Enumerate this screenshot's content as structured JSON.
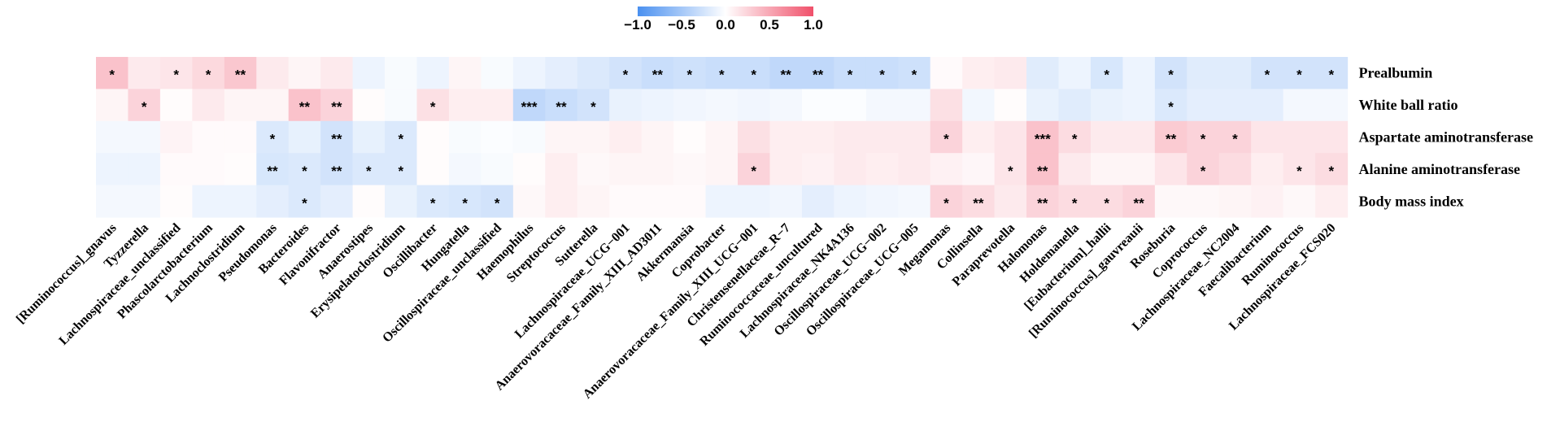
{
  "chart_data": {
    "type": "heatmap",
    "title": "",
    "color_scale": {
      "min": -1.0,
      "max": 1.0,
      "low_color": "#4a90f0",
      "mid_color": "#ffffff",
      "high_color": "#f0506a",
      "ticks": [
        "−1.0",
        "−0.5",
        "0.0",
        "0.5",
        "1.0"
      ],
      "tick_values": [
        -1.0,
        -0.5,
        0.0,
        0.5,
        1.0
      ]
    },
    "rows": [
      "Prealbumin",
      "White ball ratio",
      "Aspartate aminotransferase",
      "Alanine aminotransferase",
      "Body mass index"
    ],
    "columns": [
      "[Ruminococcus]_gnavus",
      "Tyzzerella",
      "Lachnospiraceae_unclassified",
      "Phascolarctobacterium",
      "Lachnoclostridium",
      "Pseudomonas",
      "Bacteroides",
      "Flavonifractor",
      "Anaerostipes",
      "Erysipelatoclostridium",
      "Oscillibacter",
      "Hungatella",
      "Oscillospiraceae_unclassified",
      "Haemophilus",
      "Streptococcus",
      "Sutterella",
      "Lachnospiraceae_UCG−001",
      "Anaerovoracaceae_Family_XIII_AD3011",
      "Akkermansia",
      "Coprobacter",
      "Anaerovoracaceae_Family_XIII_UCG−001",
      "Christensenellaceae_R−7",
      "Ruminococcaceae_uncultured",
      "Lachnospiraceae_NK4A136",
      "Oscillospiraceae_UCG−002",
      "Oscillospiraceae_UCG−005",
      "Megamonas",
      "Collinsella",
      "Paraprevotella",
      "Halomonas",
      "Holdemanella",
      "[Eubacterium]_hallii",
      "[Ruminococcus]_gauvreauii",
      "Roseburia",
      "Coprococcus",
      "Lachnospiraceae_NC2004",
      "Faecalibacterium",
      "Ruminococcus",
      "Lachnospiraceae_FCS020"
    ],
    "values": [
      [
        0.35,
        0.12,
        0.15,
        0.22,
        0.32,
        0.12,
        0.06,
        0.12,
        -0.1,
        -0.04,
        -0.1,
        0.06,
        -0.04,
        -0.1,
        -0.15,
        -0.2,
        -0.25,
        -0.3,
        -0.27,
        -0.3,
        -0.3,
        -0.35,
        -0.35,
        -0.3,
        -0.3,
        -0.27,
        0.03,
        0.1,
        0.12,
        -0.17,
        -0.1,
        -0.22,
        -0.1,
        -0.25,
        -0.17,
        -0.17,
        -0.25,
        -0.25,
        -0.25
      ],
      [
        0.06,
        0.25,
        0.02,
        0.12,
        0.06,
        0.06,
        0.35,
        0.25,
        0.02,
        -0.04,
        0.18,
        0.1,
        0.1,
        -0.35,
        -0.3,
        -0.25,
        -0.12,
        -0.1,
        -0.08,
        -0.06,
        -0.08,
        -0.06,
        -0.02,
        -0.02,
        -0.06,
        -0.06,
        0.18,
        -0.07,
        0.02,
        -0.12,
        -0.17,
        -0.12,
        -0.1,
        -0.2,
        -0.15,
        -0.15,
        -0.15,
        -0.06,
        -0.06
      ],
      [
        -0.06,
        -0.06,
        0.07,
        0.03,
        0.03,
        -0.2,
        -0.13,
        -0.25,
        -0.13,
        -0.2,
        0.02,
        -0.04,
        -0.02,
        -0.04,
        0.06,
        0.06,
        0.1,
        0.06,
        0.02,
        0.06,
        0.18,
        0.1,
        0.1,
        0.12,
        0.12,
        0.12,
        0.25,
        0.1,
        0.15,
        0.35,
        0.2,
        0.12,
        0.12,
        0.3,
        0.25,
        0.25,
        0.15,
        0.15,
        0.15
      ],
      [
        -0.1,
        -0.1,
        0.03,
        0.03,
        0.02,
        -0.22,
        -0.2,
        -0.25,
        -0.2,
        -0.2,
        0.02,
        -0.06,
        -0.04,
        0.02,
        0.1,
        0.04,
        0.06,
        0.06,
        0.04,
        0.06,
        0.25,
        0.1,
        0.08,
        0.12,
        0.1,
        0.12,
        0.08,
        0.05,
        0.15,
        0.35,
        0.12,
        0.06,
        0.06,
        0.15,
        0.25,
        0.2,
        0.1,
        0.15,
        0.2
      ],
      [
        -0.06,
        -0.06,
        0.02,
        -0.1,
        -0.1,
        -0.15,
        -0.2,
        -0.15,
        0.02,
        -0.12,
        -0.2,
        -0.22,
        -0.25,
        0.04,
        0.1,
        0.06,
        0.03,
        0.03,
        0.03,
        -0.1,
        -0.1,
        -0.08,
        -0.15,
        -0.1,
        -0.08,
        -0.06,
        0.25,
        0.2,
        0.12,
        0.25,
        0.2,
        0.2,
        0.25,
        0.04,
        0.04,
        0.06,
        0.08,
        0.04,
        0.1
      ]
    ],
    "significance": [
      [
        "*",
        "",
        "*",
        "*",
        "**",
        "",
        "",
        "",
        "",
        "",
        "",
        "",
        "",
        "",
        "",
        "",
        "*",
        "**",
        "*",
        "*",
        "*",
        "**",
        "**",
        "*",
        "*",
        "*",
        "",
        "",
        "",
        "",
        "",
        "*",
        "",
        "*",
        "",
        "",
        "*",
        "*",
        "*"
      ],
      [
        "",
        "*",
        "",
        "",
        "",
        "",
        "**",
        "**",
        "",
        "",
        "*",
        "",
        "",
        "***",
        "**",
        "*",
        "",
        "",
        "",
        "",
        "",
        "",
        "",
        "",
        "",
        "",
        "",
        "",
        "",
        "",
        "",
        "",
        "",
        "*",
        "",
        "",
        "",
        "",
        ""
      ],
      [
        "",
        "",
        "",
        "",
        "",
        "*",
        "",
        "**",
        "",
        "*",
        "",
        "",
        "",
        "",
        "",
        "",
        "",
        "",
        "",
        "",
        "",
        "",
        "",
        "",
        "",
        "",
        "*",
        "",
        "",
        "***",
        "*",
        "",
        "",
        "**",
        "*",
        "*",
        "",
        "",
        ""
      ],
      [
        "",
        "",
        "",
        "",
        "",
        "**",
        "*",
        "**",
        "*",
        "*",
        "",
        "",
        "",
        "",
        "",
        "",
        "",
        "",
        "",
        "",
        "*",
        "",
        "",
        "",
        "",
        "",
        "",
        "",
        "*",
        "**",
        "",
        "",
        "",
        "",
        "*",
        "",
        "",
        "*",
        "*"
      ],
      [
        "",
        "",
        "",
        "",
        "",
        "",
        "*",
        "",
        "",
        "",
        "*",
        "*",
        "*",
        "",
        "",
        "",
        "",
        "",
        "",
        "",
        "",
        "",
        "",
        "",
        "",
        "",
        "*",
        "**",
        "",
        "**",
        "*",
        "*",
        "**",
        "",
        "",
        "",
        "",
        "",
        ""
      ]
    ]
  }
}
